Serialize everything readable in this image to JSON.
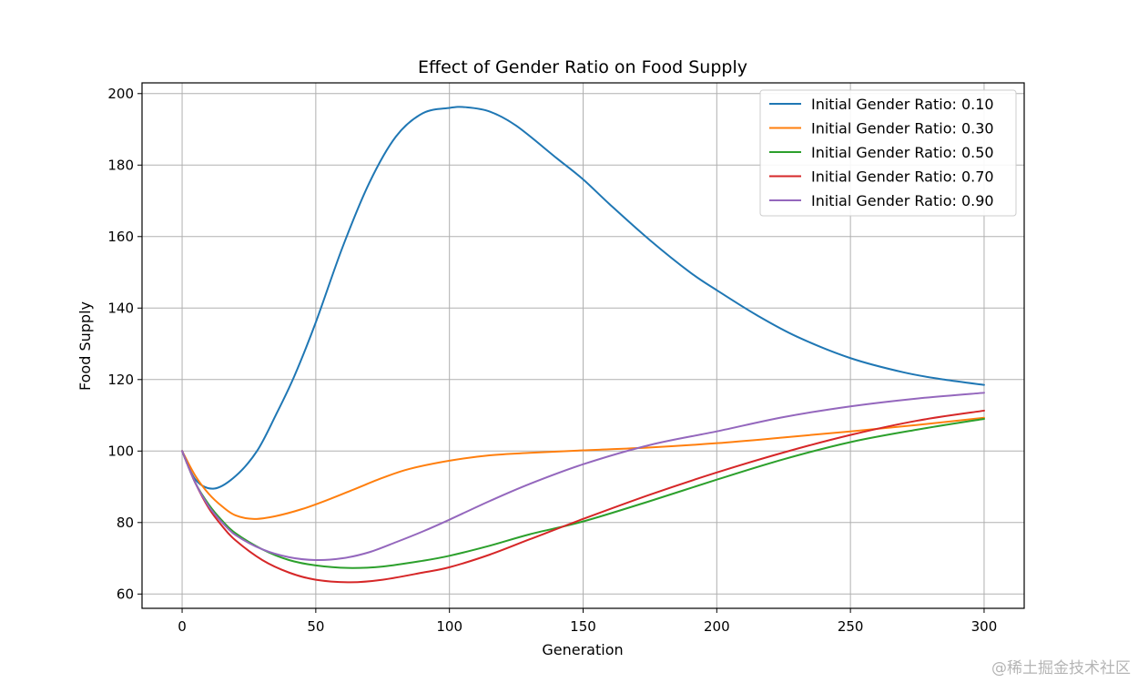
{
  "chart_data": {
    "type": "line",
    "title": "Effect of Gender Ratio on Food Supply",
    "xlabel": "Generation",
    "ylabel": "Food Supply",
    "xlim": [
      -15,
      315
    ],
    "ylim": [
      56,
      203
    ],
    "xticks": [
      0,
      50,
      100,
      150,
      200,
      250,
      300
    ],
    "yticks": [
      60,
      80,
      100,
      120,
      140,
      160,
      180,
      200
    ],
    "grid": true,
    "legend_position": "top-right",
    "series": [
      {
        "name": "Initial Gender Ratio: 0.10",
        "color": "#1f77b4",
        "x": [
          0,
          5,
          12,
          20,
          28,
          35,
          42,
          50,
          60,
          70,
          80,
          90,
          100,
          106,
          115,
          125,
          140,
          150,
          160,
          175,
          190,
          200,
          215,
          230,
          250,
          270,
          285,
          300
        ],
        "values": [
          100,
          92,
          89.5,
          93,
          100,
          110,
          121,
          136,
          157,
          175,
          188,
          194.5,
          196,
          196.2,
          195,
          191,
          182,
          176,
          169,
          159,
          150,
          145,
          138,
          132,
          126,
          122,
          120,
          118.5
        ]
      },
      {
        "name": "Initial Gender Ratio: 0.30",
        "color": "#ff7f0e",
        "x": [
          0,
          5,
          10,
          15,
          20,
          27,
          35,
          45,
          55,
          65,
          75,
          85,
          100,
          115,
          130,
          150,
          175,
          200,
          225,
          250,
          275,
          300
        ],
        "values": [
          100,
          93,
          88,
          84.5,
          82,
          81,
          81.8,
          83.8,
          86.5,
          89.5,
          92.5,
          95,
          97.3,
          98.8,
          99.5,
          100.2,
          101,
          102.2,
          103.8,
          105.5,
          107.3,
          109.3
        ]
      },
      {
        "name": "Initial Gender Ratio: 0.50",
        "color": "#2ca02c",
        "x": [
          0,
          5,
          10,
          15,
          20,
          30,
          40,
          50,
          62,
          75,
          90,
          100,
          115,
          130,
          150,
          175,
          200,
          225,
          250,
          275,
          300
        ],
        "values": [
          100,
          91,
          85,
          80.5,
          77,
          72.5,
          69.5,
          68,
          67.3,
          67.7,
          69.3,
          70.7,
          73.5,
          76.7,
          80.3,
          86,
          92,
          97.7,
          102.5,
          106,
          109
        ]
      },
      {
        "name": "Initial Gender Ratio: 0.70",
        "color": "#d62728",
        "x": [
          0,
          5,
          10,
          15,
          20,
          30,
          40,
          50,
          63,
          75,
          90,
          100,
          115,
          130,
          150,
          175,
          200,
          225,
          250,
          275,
          300
        ],
        "values": [
          100,
          91,
          84,
          79,
          75,
          69.5,
          66,
          64,
          63.3,
          64,
          66,
          67.5,
          71,
          75.3,
          81,
          87.8,
          94,
          99.6,
          104.5,
          108.5,
          111.3
        ]
      },
      {
        "name": "Initial Gender Ratio: 0.90",
        "color": "#9467bd",
        "x": [
          0,
          5,
          10,
          15,
          20,
          30,
          40,
          50,
          60,
          70,
          80,
          90,
          100,
          115,
          130,
          150,
          175,
          200,
          225,
          250,
          275,
          300
        ],
        "values": [
          100,
          91,
          84.5,
          80,
          76.5,
          72.5,
          70.3,
          69.5,
          70,
          71.7,
          74.5,
          77.5,
          80.8,
          86,
          90.8,
          96.3,
          101.7,
          105.5,
          109.5,
          112.5,
          114.7,
          116.3
        ]
      }
    ]
  },
  "watermark": "@稀土掘金技术社区"
}
